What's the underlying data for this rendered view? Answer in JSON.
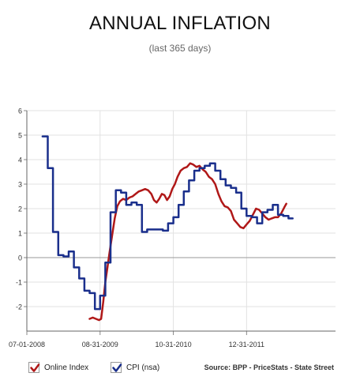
{
  "title": "ANNUAL INFLATION",
  "subtitle": "(last 365 days)",
  "source": "Source: BPP - PriceStats - State Street",
  "chart_data": {
    "type": "line",
    "ylim": [
      -3,
      6
    ],
    "yticks": [
      -2,
      -1,
      0,
      1,
      2,
      3,
      4,
      5,
      6
    ],
    "xticks": [
      {
        "label": "07-01-2008",
        "t": 0
      },
      {
        "label": "08-31-2009",
        "t": 14
      },
      {
        "label": "10-31-2010",
        "t": 28
      },
      {
        "label": "12-31-2011",
        "t": 42
      }
    ],
    "xlim": [
      0,
      59
    ],
    "grid": true,
    "series": [
      {
        "name": "Online Index",
        "color": "#b01818",
        "style": "smooth",
        "points": [
          [
            12.0,
            -2.5
          ],
          [
            12.6,
            -2.45
          ],
          [
            13.2,
            -2.5
          ],
          [
            13.8,
            -2.55
          ],
          [
            14.2,
            -2.5
          ],
          [
            14.6,
            -1.8
          ],
          [
            15.0,
            -1.0
          ],
          [
            15.4,
            -0.4
          ],
          [
            15.8,
            0.2
          ],
          [
            16.3,
            0.9
          ],
          [
            16.8,
            1.6
          ],
          [
            17.3,
            2.1
          ],
          [
            17.8,
            2.3
          ],
          [
            18.4,
            2.4
          ],
          [
            19.0,
            2.35
          ],
          [
            19.6,
            2.45
          ],
          [
            20.2,
            2.5
          ],
          [
            20.8,
            2.6
          ],
          [
            21.4,
            2.7
          ],
          [
            22.0,
            2.75
          ],
          [
            22.6,
            2.8
          ],
          [
            23.2,
            2.75
          ],
          [
            23.8,
            2.6
          ],
          [
            24.3,
            2.35
          ],
          [
            24.8,
            2.25
          ],
          [
            25.3,
            2.4
          ],
          [
            25.8,
            2.6
          ],
          [
            26.3,
            2.55
          ],
          [
            26.8,
            2.35
          ],
          [
            27.3,
            2.5
          ],
          [
            27.8,
            2.8
          ],
          [
            28.3,
            3.0
          ],
          [
            28.8,
            3.3
          ],
          [
            29.4,
            3.55
          ],
          [
            30.0,
            3.65
          ],
          [
            30.6,
            3.7
          ],
          [
            31.2,
            3.85
          ],
          [
            31.8,
            3.8
          ],
          [
            32.4,
            3.7
          ],
          [
            33.0,
            3.75
          ],
          [
            33.6,
            3.6
          ],
          [
            34.2,
            3.5
          ],
          [
            34.8,
            3.3
          ],
          [
            35.4,
            3.2
          ],
          [
            36.0,
            3.0
          ],
          [
            36.6,
            2.6
          ],
          [
            37.2,
            2.3
          ],
          [
            37.8,
            2.1
          ],
          [
            38.4,
            2.05
          ],
          [
            39.0,
            1.9
          ],
          [
            39.6,
            1.55
          ],
          [
            40.2,
            1.4
          ],
          [
            40.8,
            1.25
          ],
          [
            41.4,
            1.2
          ],
          [
            42.0,
            1.35
          ],
          [
            42.6,
            1.5
          ],
          [
            43.2,
            1.75
          ],
          [
            43.8,
            2.0
          ],
          [
            44.4,
            1.95
          ],
          [
            45.0,
            1.8
          ],
          [
            45.6,
            1.65
          ],
          [
            46.2,
            1.55
          ],
          [
            46.8,
            1.6
          ],
          [
            47.4,
            1.65
          ],
          [
            48.0,
            1.65
          ],
          [
            48.6,
            1.8
          ],
          [
            49.2,
            2.05
          ],
          [
            49.6,
            2.2
          ]
        ]
      },
      {
        "name": "CPI (nsa)",
        "color": "#1a2f8c",
        "style": "step",
        "points": [
          [
            3.0,
            4.95
          ],
          [
            4.0,
            3.65
          ],
          [
            5.0,
            1.05
          ],
          [
            6.0,
            0.1
          ],
          [
            7.0,
            0.05
          ],
          [
            8.0,
            0.25
          ],
          [
            9.0,
            -0.4
          ],
          [
            10.0,
            -0.85
          ],
          [
            11.0,
            -1.35
          ],
          [
            12.0,
            -1.45
          ],
          [
            13.0,
            -2.1
          ],
          [
            14.0,
            -1.55
          ],
          [
            15.0,
            -0.2
          ],
          [
            16.0,
            1.85
          ],
          [
            17.0,
            2.75
          ],
          [
            18.0,
            2.65
          ],
          [
            19.0,
            2.15
          ],
          [
            20.0,
            2.25
          ],
          [
            21.0,
            2.15
          ],
          [
            22.0,
            1.05
          ],
          [
            23.0,
            1.15
          ],
          [
            24.0,
            1.15
          ],
          [
            25.0,
            1.15
          ],
          [
            26.0,
            1.1
          ],
          [
            27.0,
            1.4
          ],
          [
            28.0,
            1.65
          ],
          [
            29.0,
            2.15
          ],
          [
            30.0,
            2.7
          ],
          [
            31.0,
            3.15
          ],
          [
            32.0,
            3.55
          ],
          [
            33.0,
            3.65
          ],
          [
            34.0,
            3.75
          ],
          [
            35.0,
            3.85
          ],
          [
            36.0,
            3.55
          ],
          [
            37.0,
            3.2
          ],
          [
            38.0,
            2.95
          ],
          [
            39.0,
            2.85
          ],
          [
            40.0,
            2.65
          ],
          [
            41.0,
            2.0
          ],
          [
            42.0,
            1.7
          ],
          [
            43.0,
            1.65
          ],
          [
            44.0,
            1.4
          ],
          [
            45.0,
            1.85
          ],
          [
            46.0,
            1.95
          ],
          [
            47.0,
            2.15
          ],
          [
            48.0,
            1.75
          ],
          [
            49.0,
            1.7
          ],
          [
            50.0,
            1.6
          ]
        ]
      }
    ]
  }
}
